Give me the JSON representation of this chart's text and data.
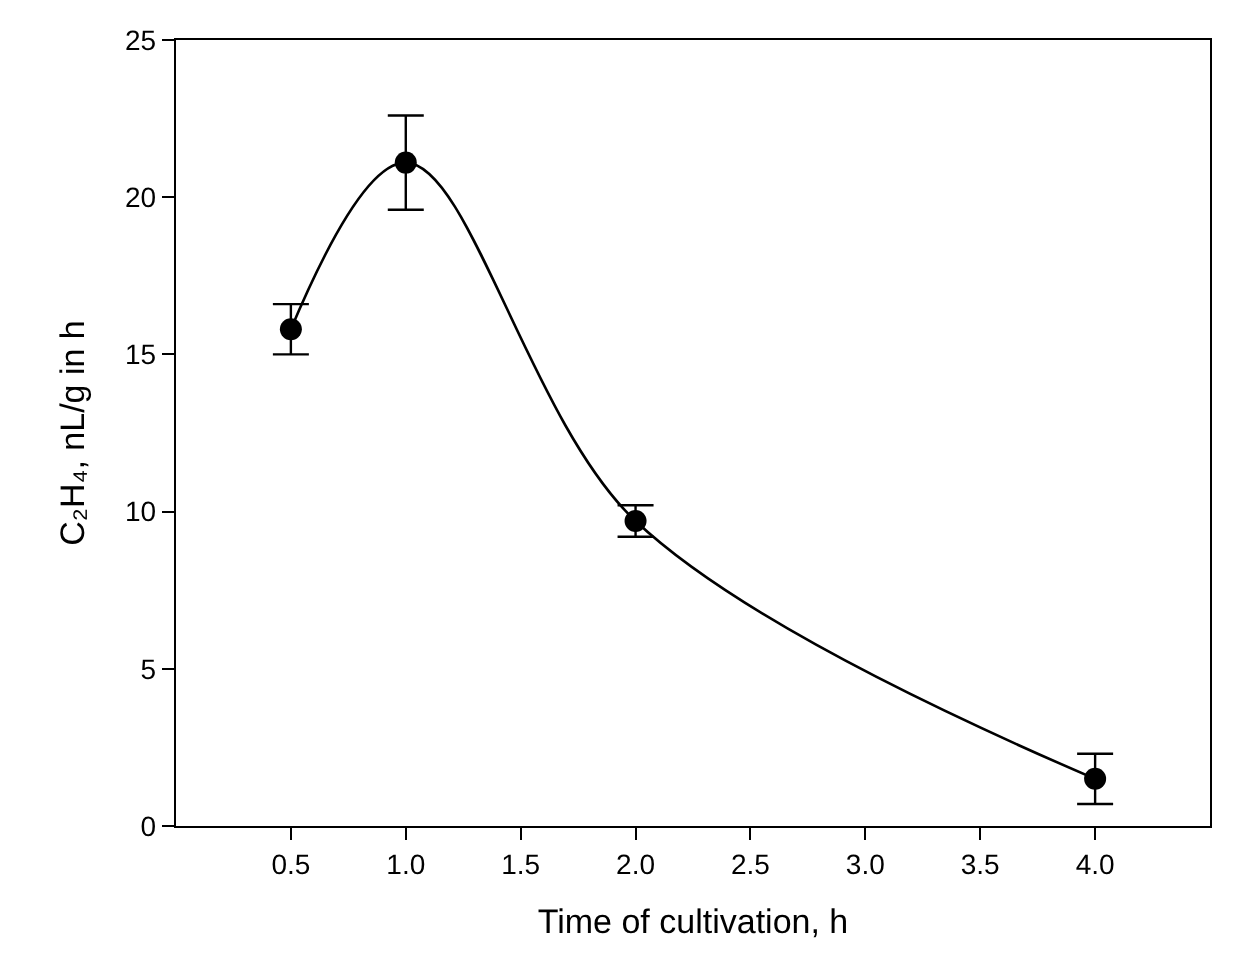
{
  "chart_data": {
    "type": "line",
    "xlabel": "Time of cultivation, h",
    "ylabel": "C₂H₄, nL/g in h",
    "x": [
      0.5,
      1.0,
      2.0,
      4.0
    ],
    "series": [
      {
        "color": "#000000",
        "values": [
          15.8,
          21.1,
          9.7,
          1.5
        ],
        "errors": [
          0.8,
          1.5,
          0.5,
          0.8
        ]
      }
    ],
    "xlim": [
      0,
      4.5
    ],
    "xticks": [
      {
        "value": 0.5,
        "label": "0.5"
      },
      {
        "value": 1.0,
        "label": "1.0"
      },
      {
        "value": 1.5,
        "label": "1.5"
      },
      {
        "value": 2.0,
        "label": "2.0"
      },
      {
        "value": 2.5,
        "label": "2.5"
      },
      {
        "value": 3.0,
        "label": "3.0"
      },
      {
        "value": 3.5,
        "label": "3.5"
      },
      {
        "value": 4.0,
        "label": "4.0"
      }
    ],
    "ylim": [
      0,
      25
    ],
    "yticks": [
      0,
      5,
      10,
      15,
      20,
      25
    ],
    "marker": "circle",
    "line_style": "solid"
  }
}
